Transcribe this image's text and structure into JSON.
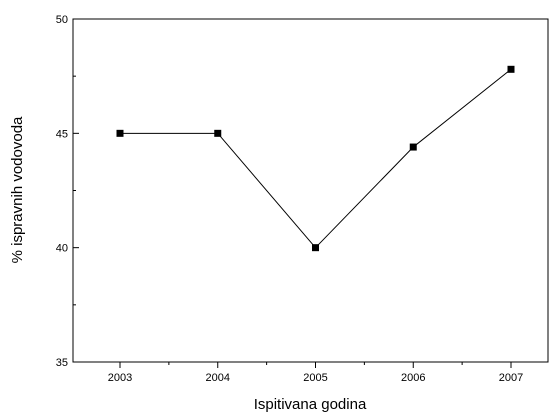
{
  "chart_data": {
    "type": "line",
    "title": "",
    "xlabel": "Ispitivana godina",
    "ylabel": "% ispravnih vodovoda",
    "categories": [
      "2003",
      "2004",
      "2005",
      "2006",
      "2007"
    ],
    "series": [
      {
        "values": [
          45.0,
          45.0,
          40.0,
          44.4,
          47.8
        ]
      }
    ],
    "ylim": [
      35,
      50
    ],
    "yticks": [
      35,
      40,
      45,
      50
    ],
    "grid": false,
    "legend": "none",
    "colors": {
      "line": "#000000",
      "marker": "#000000",
      "axis": "#000000"
    }
  }
}
